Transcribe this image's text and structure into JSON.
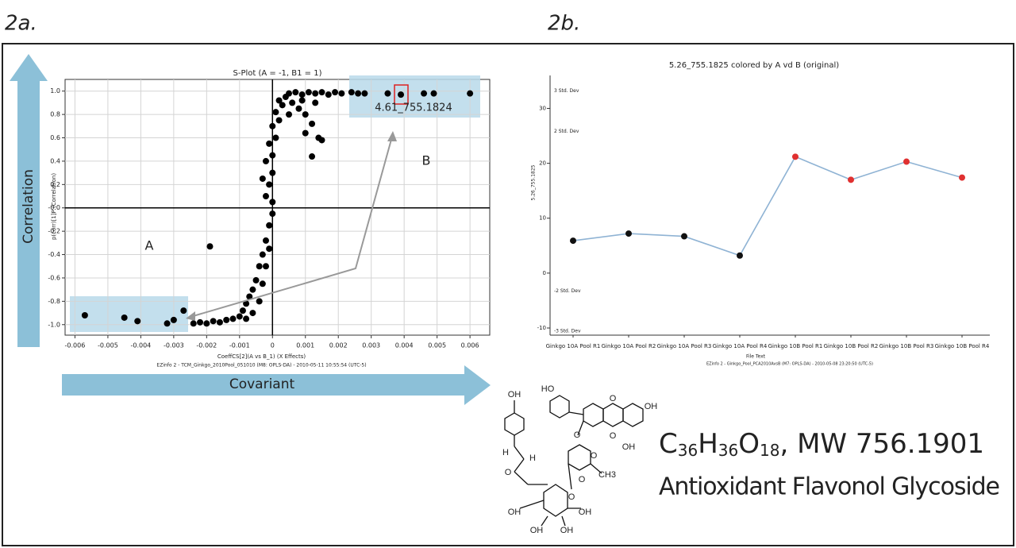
{
  "panels": [
    "2a.",
    "2b."
  ],
  "chart_data": [
    {
      "type": "scatter",
      "title": "S-Plot (A = -1, B1 = 1)",
      "x_label": "CoeffCS[2](A vs B_1) (X Effects)",
      "y_label": "p(corr)[1]P (Correlation)",
      "footer": "EZinfo 2 - TCM_Ginkgo_2010Pool_051010 (M8: OPLS-DA) - 2010-05-11 10:55:54 (UTC-5)",
      "axis_arrow_y": "Correlation",
      "axis_arrow_x": "Covariant",
      "group_labels": [
        "A",
        "B"
      ],
      "highlight_label": "4.61_755.1824",
      "color": "#000000",
      "grid": true,
      "xlim": [
        -0.0063,
        0.0066
      ],
      "ylim": [
        -1.09,
        1.1
      ],
      "xticks": [
        -0.006,
        -0.005,
        -0.004,
        -0.003,
        -0.002,
        -0.001,
        0,
        0.001,
        0.002,
        0.003,
        0.004,
        0.005,
        0.006
      ],
      "yticks": [
        {
          "value": -1,
          "label": "-1.0"
        },
        -0.8,
        -0.6,
        -0.4,
        -0.2,
        {
          "value": 0,
          "label": "-0.0"
        },
        0.2,
        0.4,
        0.6,
        0.8,
        {
          "value": 1,
          "label": "1.0"
        }
      ],
      "x": [
        -0.0057,
        -0.0045,
        -0.0041,
        -0.0032,
        -0.003,
        -0.0027,
        -0.0019,
        0.0028,
        0.0035,
        0.0039,
        0.0046,
        0.0049,
        0.006,
        0.0015,
        0.0014,
        0.0012,
        0.001,
        -0.0024,
        -0.0022,
        -0.002,
        -0.0018,
        -0.0016,
        -0.0014,
        -0.0012,
        -0.001,
        -0.0009,
        -0.0008,
        -0.0007,
        -0.0006,
        -0.0008,
        -0.0006,
        -0.0005,
        -0.0004,
        -0.0004,
        -0.0003,
        -0.0003,
        -0.0002,
        -0.0002,
        -0.0001,
        -0.0001,
        0,
        0,
        -0.0002,
        -0.0003,
        -0.0001,
        0,
        -0.0002,
        0,
        -0.0001,
        0.0001,
        0,
        0.0002,
        0.0001,
        0.0003,
        0.0002,
        0.0004,
        0.0005,
        0.0007,
        0.0009,
        0.0011,
        0.0013,
        0.0015,
        0.0017,
        0.0019,
        0.0021,
        0.0024,
        0.0026,
        0.0006,
        0.0008,
        0.001,
        0.0012,
        0.0005,
        0.0009,
        0.0013
      ],
      "values": [
        -0.92,
        -0.94,
        -0.97,
        -0.99,
        -0.96,
        -0.88,
        -0.33,
        0.98,
        0.98,
        0.97,
        0.98,
        0.98,
        0.98,
        0.58,
        0.6,
        0.44,
        0.64,
        -0.99,
        -0.98,
        -0.99,
        -0.97,
        -0.98,
        -0.96,
        -0.95,
        -0.93,
        -0.88,
        -0.82,
        -0.76,
        -0.7,
        -0.95,
        -0.9,
        -0.62,
        -0.5,
        -0.8,
        -0.4,
        -0.65,
        -0.28,
        -0.5,
        -0.15,
        -0.35,
        -0.05,
        0.05,
        0.1,
        0.25,
        0.2,
        0.3,
        0.4,
        0.45,
        0.55,
        0.6,
        0.7,
        0.75,
        0.82,
        0.88,
        0.92,
        0.95,
        0.98,
        0.99,
        0.97,
        0.99,
        0.98,
        0.99,
        0.97,
        0.99,
        0.98,
        0.99,
        0.98,
        0.9,
        0.85,
        0.8,
        0.72,
        0.8,
        0.92,
        0.9
      ]
    },
    {
      "type": "line",
      "title": "5.26_755.1825 colored by A vd B (original)",
      "x_label": "File Text",
      "y_label": "5.26_755.1825",
      "footer": "EZinfo 2 - Ginkgo_Pool_PCA2010AvsB (M7: OPLS-DA) - 2010-05-08 23:20:50 (UTC-5)",
      "categories": [
        "Ginkgo 10A Pool R1",
        "Ginkgo 10A Pool R2",
        "Ginkgo 10A Pool R3",
        "Ginkgo 10A Pool R4",
        "Ginkgo 10B Pool R1",
        "Ginkgo 10B Pool R2",
        "Ginkgo 10B Pool R3",
        "Ginkgo 10B Pool R4"
      ],
      "values": [
        5.9,
        7.2,
        6.7,
        3.2,
        21.2,
        17.0,
        20.3,
        17.4
      ],
      "color": "#8fb3d4",
      "marker_colors": [
        "#111111",
        "#111111",
        "#111111",
        "#111111",
        "#e03030",
        "#e03030",
        "#e03030",
        "#e03030"
      ],
      "ylim": [
        -11.3,
        36
      ],
      "yticks": [
        -10,
        0,
        10,
        20,
        30
      ],
      "grid": false,
      "std_dev_labels": [
        {
          "value": 33.2,
          "label": "3 Std. Dev"
        },
        {
          "value": 25.8,
          "label": "2 Std. Dev"
        },
        {
          "value": -3.3,
          "label": "-2 Std. Dev"
        },
        {
          "value": -10.6,
          "label": "-3 Std. Dev"
        }
      ]
    }
  ],
  "structure": {
    "labels": [
      "OH",
      "HO",
      "OH",
      "O",
      "OH",
      "O",
      "H",
      "H",
      "O",
      "O",
      "O",
      "CH3",
      "O",
      "O",
      "OH",
      "OH",
      "OH",
      "OH"
    ]
  },
  "compound": {
    "formula": {
      "elements": [
        "C",
        "H",
        "O"
      ],
      "counts": [
        "36",
        "36",
        "18"
      ],
      "suffix": ", MW 756.1901"
    },
    "name": "Antioxidant Flavonol Glycoside"
  }
}
